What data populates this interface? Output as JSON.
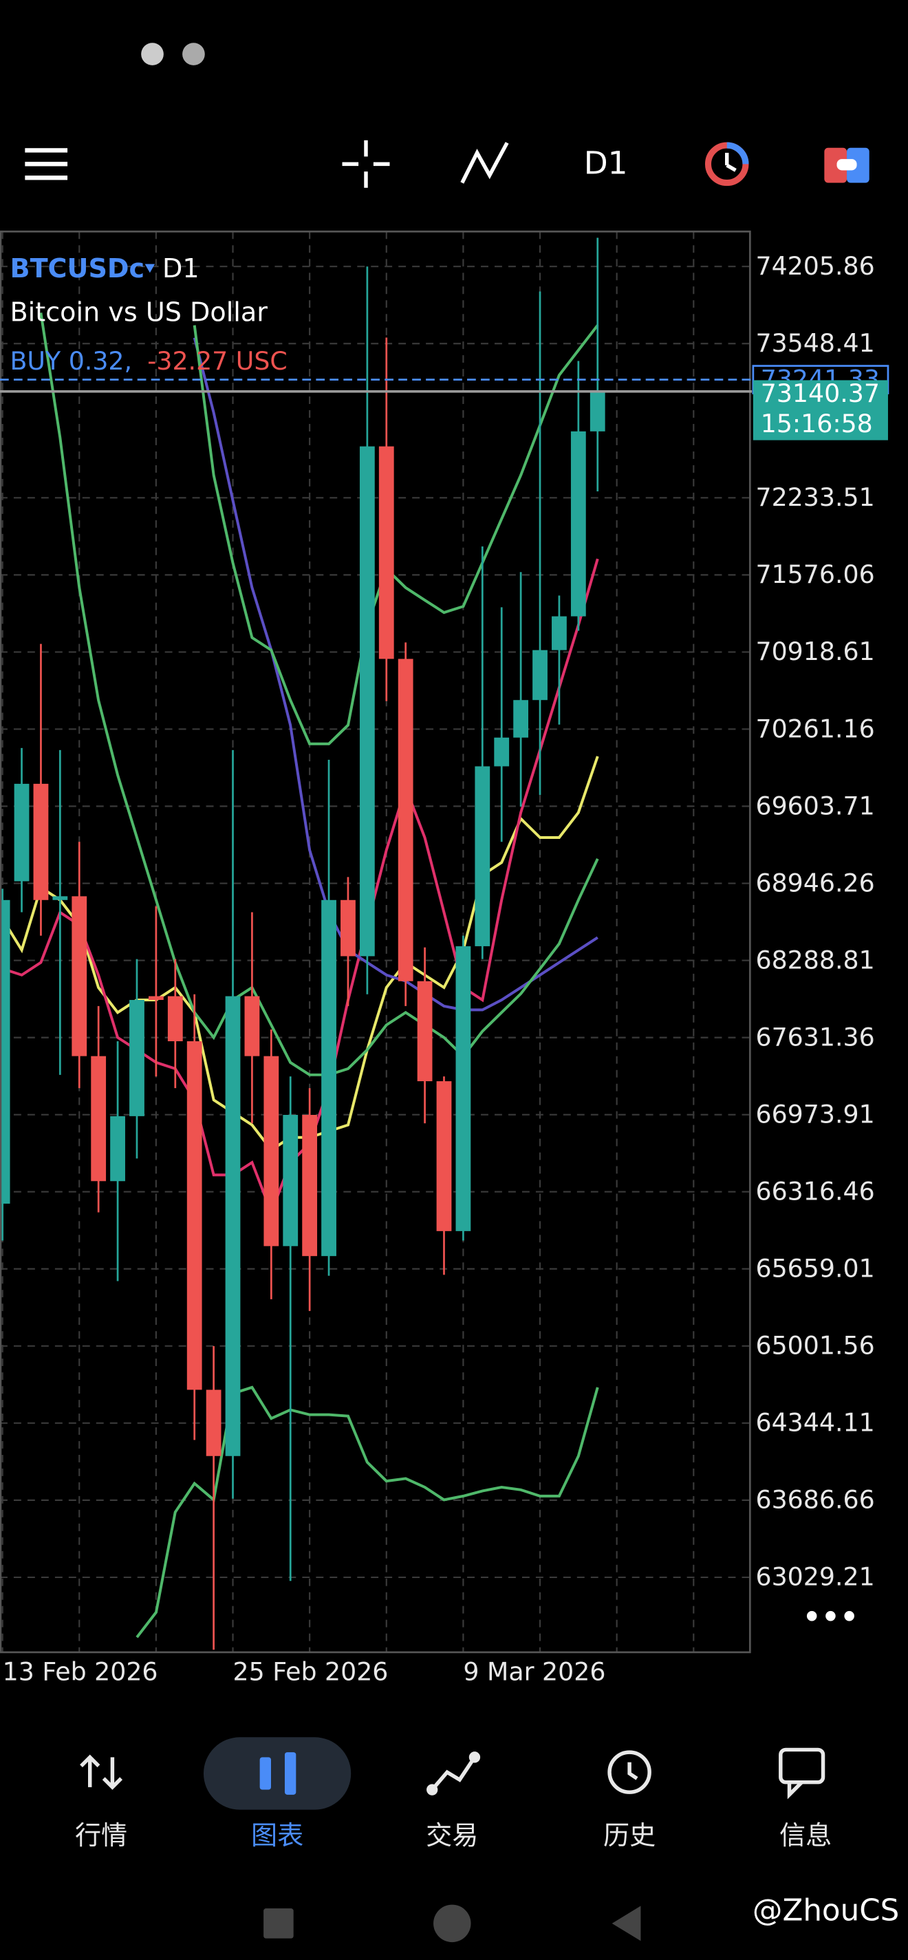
{
  "toolbar": {
    "timeframe": "D1"
  },
  "chart_data": {
    "type": "candlestick",
    "symbol": "BTCUSDc",
    "timeframe": "D1",
    "description": "Bitcoin vs US Dollar",
    "position": "BUY 0.32,",
    "profit": "-32.27 USC",
    "bid": 73140.37,
    "ask": 73241.33,
    "countdown": "15:16:58",
    "categories": [
      "13 Feb 2026",
      null,
      null,
      null,
      null,
      null,
      null,
      null,
      null,
      null,
      null,
      null,
      "25 Feb 2026",
      null,
      null,
      null,
      null,
      null,
      null,
      null,
      null,
      null,
      null,
      null,
      "9 Mar 2026",
      null,
      null,
      null,
      null,
      null,
      null,
      null
    ],
    "open": [
      66215,
      68964,
      69795,
      68804,
      68836,
      67473,
      66407,
      66961,
      67984,
      67984,
      67600,
      64628,
      64063,
      67984,
      67473,
      65853,
      66972,
      65768,
      68804,
      68325,
      72672,
      70860,
      68112,
      67259,
      65981,
      68410,
      69944,
      70189,
      70509,
      70935,
      71223,
      72800
    ],
    "high": [
      68900,
      70100,
      70988,
      70083,
      69300,
      67900,
      67600,
      68300,
      68751,
      68300,
      68000,
      65000,
      70083,
      68700,
      67700,
      67300,
      67200,
      70000,
      69000,
      74206,
      73600,
      71000,
      68400,
      67300,
      68500,
      71819,
      71300,
      71600,
      73993,
      71400,
      73400,
      74451
    ],
    "low": [
      65900,
      68700,
      68500,
      67313,
      67200,
      66141,
      65555,
      66600,
      67300,
      67200,
      64200,
      62412,
      63700,
      66900,
      65400,
      62998,
      65300,
      65600,
      67900,
      68000,
      70500,
      67900,
      66900,
      65608,
      65900,
      68300,
      69300,
      69600,
      69700,
      70300,
      71100,
      72288
    ],
    "close": [
      68804,
      69795,
      68804,
      68836,
      67473,
      66407,
      66961,
      67952,
      67952,
      67600,
      64628,
      64063,
      67984,
      67473,
      65853,
      66972,
      65768,
      68804,
      68325,
      72672,
      70860,
      68112,
      67259,
      65981,
      68410,
      69944,
      70189,
      70509,
      70935,
      71223,
      72800,
      73140.37
    ],
    "up_color": "#26a69a",
    "down_color": "#ef5350",
    "lines": [
      {
        "color": "#e8e86a",
        "values": [
          68644,
          68378,
          68911,
          68804,
          68591,
          68058,
          67845,
          67952,
          67952,
          68058,
          67845,
          67099,
          66993,
          66886,
          66673,
          66780,
          66780,
          66833,
          66886,
          67526,
          68058,
          68271,
          68165,
          68058,
          68378,
          69017,
          69124,
          69497,
          69337,
          69337,
          69550,
          70029
        ]
      },
      {
        "color": "#e0306a",
        "values": [
          68218,
          68165,
          68271,
          68698,
          68591,
          68165,
          67632,
          67526,
          67419,
          67366,
          67099,
          66460,
          66460,
          66567,
          66141,
          66567,
          66727,
          67206,
          67952,
          68591,
          69230,
          69763,
          69337,
          68698,
          68058,
          67952,
          68804,
          69550,
          70083,
          70615,
          71148,
          71713
        ]
      },
      {
        "color": "#5b4fc4",
        "values": [
          null,
          null,
          null,
          null,
          null,
          null,
          null,
          null,
          null,
          null,
          73598,
          72959,
          72213,
          71468,
          70935,
          70296,
          69230,
          68698,
          68378,
          68271,
          68165,
          68112,
          68005,
          67899,
          67867,
          67867,
          67952,
          68058,
          68165,
          68271,
          68378,
          68484
        ]
      },
      {
        "color": "#4fb86a",
        "values": [
          null,
          null,
          null,
          null,
          null,
          null,
          null,
          null,
          null,
          null,
          73705,
          72426,
          71681,
          71041,
          70935,
          70509,
          70136,
          70136,
          70296,
          71148,
          71627,
          71468,
          71361,
          71255,
          71308,
          71681,
          72054,
          72426,
          72853,
          73279,
          73492,
          73705
        ]
      },
      {
        "color": "#4fb86a",
        "values": [
          null,
          null,
          73811,
          72746,
          71468,
          70509,
          69870,
          69337,
          68804,
          68271,
          67845,
          67632,
          67952,
          68058,
          67739,
          67419,
          67313,
          67313,
          67366,
          67526,
          67739,
          67845,
          67739,
          67632,
          67472,
          67685,
          67845,
          68005,
          68218,
          68431,
          68804,
          69156
        ]
      },
      {
        "color": "#4fb86a",
        "values": [
          null,
          null,
          null,
          null,
          null,
          null,
          null,
          62518,
          62731,
          63584,
          63829,
          63690,
          64596,
          64649,
          64383,
          64457,
          64415,
          64415,
          64404,
          64010,
          63850,
          63871,
          63797,
          63690,
          63722,
          63765,
          63797,
          63775,
          63722,
          63722,
          64063,
          64649
        ]
      }
    ],
    "ylim": [
      62390,
      74504
    ],
    "yticks": [
      74205.86,
      73548.41,
      72233.51,
      71576.06,
      70918.61,
      70261.16,
      69603.71,
      68946.26,
      68288.81,
      67631.36,
      66973.91,
      66316.46,
      65659.01,
      65001.56,
      64344.11,
      63686.66,
      63029.21
    ],
    "grid": true
  },
  "nav": {
    "items": [
      "行情",
      "图表",
      "交易",
      "历史",
      "信息"
    ]
  },
  "watermark": "@ZhouCS"
}
